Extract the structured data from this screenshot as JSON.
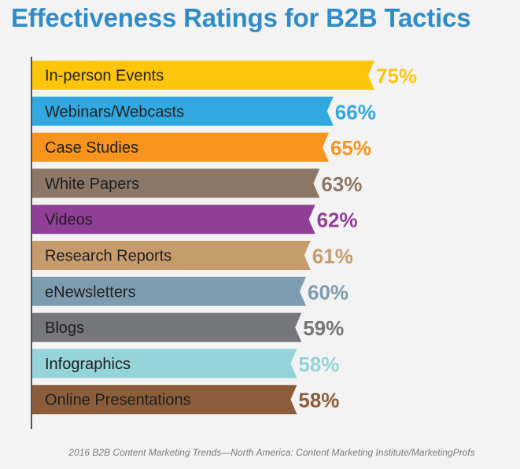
{
  "chart_data": {
    "type": "bar",
    "orientation": "horizontal",
    "title": "Effectiveness Ratings for B2B Tactics",
    "categories": [
      "In-person Events",
      "Webinars/Webcasts",
      "Case Studies",
      "White Papers",
      "Videos",
      "Research Reports",
      "eNewsletters",
      "Blogs",
      "Infographics",
      "Online Presentations"
    ],
    "values": [
      75,
      66,
      65,
      63,
      62,
      61,
      60,
      59,
      58,
      58
    ],
    "value_labels": [
      "75%",
      "66%",
      "65%",
      "63%",
      "62%",
      "61%",
      "60%",
      "59%",
      "58%",
      "58%"
    ],
    "colors": [
      "#fdc60a",
      "#31a9e0",
      "#f7941d",
      "#8d7867",
      "#8f3f96",
      "#c69c6d",
      "#7e9cb0",
      "#76777a",
      "#94d3d8",
      "#8b5d3b"
    ],
    "xlabel": "",
    "ylabel": "",
    "grid": false,
    "legend": "none",
    "source": "2016 B2B Content Marketing Trends—North America: Content Marketing Institute/MarketingProfs"
  }
}
